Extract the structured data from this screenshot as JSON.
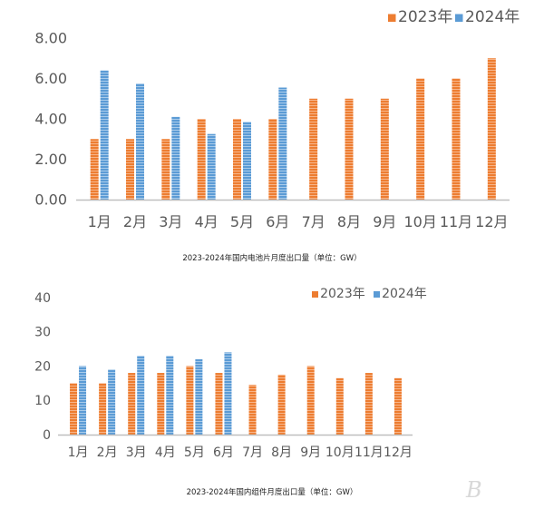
{
  "chart_data": [
    {
      "type": "bar",
      "title": "2023-2024年国内电池片月度出口量（单位：GW）",
      "categories": [
        "1月",
        "2月",
        "3月",
        "4月",
        "5月",
        "6月",
        "7月",
        "8月",
        "9月",
        "10月",
        "11月",
        "12月"
      ],
      "series": [
        {
          "name": "2023年",
          "values": [
            3.0,
            3.0,
            3.0,
            4.0,
            4.0,
            4.0,
            5.0,
            5.0,
            5.0,
            6.0,
            6.0,
            7.0
          ]
        },
        {
          "name": "2024年",
          "values": [
            6.4,
            5.75,
            4.1,
            3.25,
            3.85,
            5.55,
            null,
            null,
            null,
            null,
            null,
            null
          ]
        }
      ],
      "yticks": [
        "0.00",
        "2.00",
        "4.00",
        "6.00",
        "8.00"
      ],
      "ylim": [
        0,
        8
      ],
      "xlabel": "",
      "ylabel": "",
      "grid": false,
      "legend_position": "top-right"
    },
    {
      "type": "bar",
      "title": "2023-2024年国内组件月度出口量（单位：GW）",
      "categories": [
        "1月",
        "2月",
        "3月",
        "4月",
        "5月",
        "6月",
        "7月",
        "8月",
        "9月",
        "10月",
        "11月",
        "12月"
      ],
      "series": [
        {
          "name": "2023年",
          "values": [
            15,
            15,
            18,
            18,
            20,
            18,
            14.5,
            17.5,
            20,
            16.5,
            18,
            16.5
          ]
        },
        {
          "name": "2024年",
          "values": [
            20,
            19,
            23,
            23,
            22,
            24,
            null,
            null,
            null,
            null,
            null,
            null
          ]
        }
      ],
      "yticks": [
        "0",
        "10",
        "20",
        "30",
        "40"
      ],
      "ylim": [
        0,
        40
      ],
      "xlabel": "",
      "ylabel": "",
      "grid": false,
      "legend_position": "top-right"
    }
  ],
  "colors": {
    "series_2023": "#ED7D31",
    "series_2024": "#5B9BD5",
    "axis": "#BFBFBF"
  },
  "watermark": "B"
}
